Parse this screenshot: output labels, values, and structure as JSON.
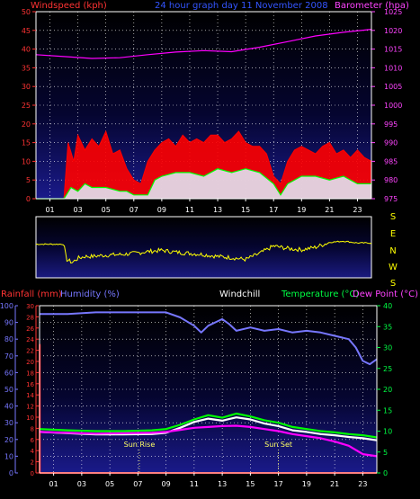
{
  "chart_data": [
    {
      "type": "line",
      "title": "24 hour graph day 11 November 2008",
      "left_axis_label": "Windspeed (kph)",
      "right_axis_label": "Barometer (hpa)",
      "x_ticks": [
        "01",
        "03",
        "05",
        "07",
        "09",
        "11",
        "13",
        "15",
        "17",
        "19",
        "21",
        "23"
      ],
      "xlim": [
        0,
        24
      ],
      "ylim_left": [
        0,
        50
      ],
      "ylim_right": [
        975,
        1025
      ],
      "y_ticks_left": [
        0,
        5,
        10,
        15,
        20,
        25,
        30,
        35,
        40,
        45,
        50
      ],
      "y_ticks_right": [
        975,
        980,
        985,
        990,
        995,
        1000,
        1005,
        1010,
        1015,
        1020,
        1025
      ],
      "grid": true,
      "series": [
        {
          "name": "Barometer",
          "axis": "right",
          "color": "#ff00ff",
          "x": [
            0,
            2,
            4,
            6,
            8,
            10,
            12,
            14,
            16,
            18,
            20,
            22,
            24
          ],
          "values": [
            1013.5,
            1013,
            1012.5,
            1012.7,
            1013.5,
            1014.2,
            1014.6,
            1014.3,
            1015.5,
            1017,
            1018.5,
            1019.5,
            1020.3
          ]
        },
        {
          "name": "Gust",
          "axis": "left",
          "color": "#ff0000",
          "x": [
            0,
            2,
            2.3,
            2.7,
            3,
            3.5,
            4,
            4.5,
            5,
            5.5,
            6,
            6.5,
            7,
            7.5,
            8,
            8.5,
            9,
            9.5,
            10,
            10.5,
            11,
            11.5,
            12,
            12.5,
            13,
            13.5,
            14,
            14.5,
            15,
            15.5,
            16,
            16.5,
            17,
            17.5,
            18,
            18.5,
            19,
            19.5,
            20,
            20.5,
            21,
            21.5,
            22,
            22.5,
            23,
            23.5,
            24
          ],
          "values": [
            0,
            0,
            15,
            10,
            17,
            13,
            16,
            14,
            18,
            12,
            13,
            8,
            5,
            4,
            10,
            13,
            15,
            16,
            14,
            17,
            15,
            16,
            15,
            17,
            17,
            15,
            16,
            18,
            15,
            14,
            14,
            12,
            6,
            4,
            10,
            13,
            14,
            13,
            12,
            14,
            15,
            12,
            13,
            11,
            13,
            11,
            10
          ]
        },
        {
          "name": "Wind speed",
          "axis": "left",
          "color": "#00ff00",
          "x": [
            0,
            2,
            2.5,
            3,
            3.5,
            4,
            5,
            6,
            6.5,
            7,
            7.5,
            8,
            8.5,
            9,
            10,
            11,
            12,
            13,
            14,
            15,
            16,
            17,
            17.5,
            18,
            19,
            20,
            21,
            22,
            23,
            24
          ],
          "values": [
            0,
            0,
            3,
            2,
            4,
            3,
            3,
            2,
            2,
            1,
            1,
            1,
            5,
            6,
            7,
            7,
            6,
            8,
            7,
            8,
            7,
            4,
            1,
            4,
            6,
            6,
            5,
            6,
            4,
            4
          ]
        }
      ]
    },
    {
      "type": "line",
      "title": "",
      "right_labels": [
        "S",
        "E",
        "N",
        "W",
        "S"
      ],
      "xlim": [
        0,
        24
      ],
      "series": [
        {
          "name": "Wind direction",
          "color": "#ffff00",
          "x": [
            0,
            2,
            2.2,
            2.6,
            3,
            3.5,
            4,
            5,
            6,
            7,
            8,
            9,
            10,
            11,
            12,
            13,
            14,
            15,
            16,
            17,
            18,
            19,
            20,
            21,
            22,
            23,
            24
          ],
          "values": [
            0.55,
            0.55,
            0.3,
            0.25,
            0.32,
            0.35,
            0.35,
            0.37,
            0.38,
            0.4,
            0.43,
            0.45,
            0.42,
            0.4,
            0.38,
            0.35,
            0.33,
            0.3,
            0.4,
            0.52,
            0.48,
            0.46,
            0.5,
            0.58,
            0.6,
            0.57,
            0.57
          ]
        }
      ]
    },
    {
      "type": "line",
      "title": "",
      "legend": [
        "Rainfall (mm)",
        "Humidity (%)",
        "Windchill",
        "Temperature (°C)",
        "Dew Point (°C)"
      ],
      "x_ticks": [
        "01",
        "03",
        "05",
        "07",
        "09",
        "11",
        "13",
        "15",
        "17",
        "19",
        "21",
        "23"
      ],
      "xlim": [
        0,
        24
      ],
      "y_ticks_humidity": [
        0,
        10,
        20,
        30,
        40,
        50,
        60,
        70,
        80,
        90,
        100
      ],
      "y_ticks_rain": [
        0,
        2,
        4,
        6,
        8,
        10,
        12,
        14,
        16,
        18,
        20,
        22,
        24,
        26,
        28,
        30
      ],
      "y_ticks_temp": [
        0,
        5,
        10,
        15,
        20,
        25,
        30,
        35,
        40
      ],
      "ylim_humidity": [
        0,
        100
      ],
      "ylim_rain": [
        0,
        30
      ],
      "ylim_temp": [
        0,
        40
      ],
      "grid": true,
      "annotations": [
        {
          "label": "Sun Rise",
          "x": 7.1
        },
        {
          "label": "Sun Set",
          "x": 17.0
        }
      ],
      "series": [
        {
          "name": "Rainfall",
          "axis": "rain",
          "color": "#ff0000",
          "x": [
            0,
            0.01,
            0.02,
            24
          ],
          "values": [
            0,
            23,
            0,
            0
          ]
        },
        {
          "name": "Humidity",
          "axis": "humidity",
          "color": "#7777ff",
          "x": [
            0,
            2,
            4,
            6,
            8,
            9,
            10,
            11,
            11.5,
            12,
            13,
            13.5,
            14,
            15,
            16,
            17,
            18,
            19,
            20,
            21,
            22,
            22.5,
            23,
            23.5,
            24
          ],
          "values": [
            95,
            95,
            96,
            96,
            96,
            96,
            93,
            88,
            84,
            88,
            92,
            89,
            85,
            87,
            85,
            86,
            84,
            85,
            84,
            82,
            80,
            75,
            67,
            65,
            68
          ]
        },
        {
          "name": "Temperature",
          "axis": "temp",
          "color": "#00ff00",
          "x": [
            0,
            2,
            4,
            6,
            8,
            9,
            10,
            11,
            12,
            13,
            14,
            15,
            16,
            17,
            18,
            19,
            20,
            21,
            22,
            23,
            24
          ],
          "values": [
            10.5,
            10.2,
            10.0,
            10.0,
            10.2,
            10.5,
            11.5,
            12.8,
            13.8,
            13.2,
            14.2,
            13.5,
            12.6,
            12.0,
            11.0,
            10.5,
            10.0,
            9.7,
            9.3,
            9.0,
            8.5
          ]
        },
        {
          "name": "Windchill",
          "axis": "temp",
          "color": "#ffffff",
          "x": [
            0,
            2,
            4,
            6,
            8,
            9,
            10,
            11,
            12,
            13,
            14,
            15,
            16,
            17,
            18,
            19,
            20,
            21,
            22,
            23,
            24
          ],
          "values": [
            9.8,
            9.5,
            9.2,
            9.2,
            9.3,
            9.6,
            10.8,
            12.2,
            13.0,
            12.5,
            13.3,
            12.8,
            11.8,
            11.2,
            10.2,
            9.8,
            9.3,
            9.0,
            8.6,
            8.3,
            7.8
          ]
        },
        {
          "name": "Dew Point",
          "axis": "temp",
          "color": "#ff00ff",
          "x": [
            0,
            2,
            4,
            6,
            8,
            9,
            10,
            11,
            12,
            13,
            14,
            15,
            16,
            17,
            18,
            19,
            20,
            21,
            22,
            23,
            24
          ],
          "values": [
            9.8,
            9.6,
            9.4,
            9.5,
            9.6,
            9.8,
            10.3,
            10.8,
            11.0,
            11.2,
            11.3,
            11.0,
            10.5,
            10.0,
            9.3,
            8.8,
            8.3,
            7.5,
            6.5,
            4.5,
            4.0
          ]
        }
      ]
    }
  ]
}
